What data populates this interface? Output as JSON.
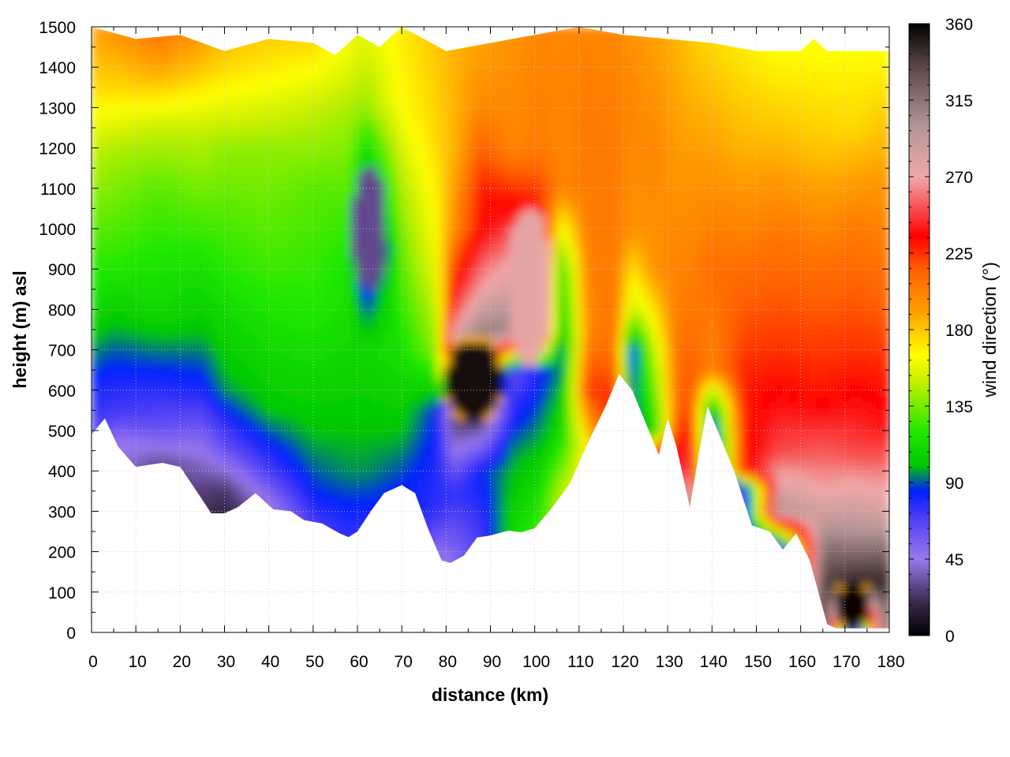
{
  "chart_data": {
    "type": "heatmap",
    "title": "",
    "xlabel": "distance (km)",
    "ylabel": "height (m) asl",
    "xlim": [
      0,
      180
    ],
    "ylim": [
      0,
      1500
    ],
    "x_ticks": [
      "0",
      "10",
      "20",
      "30",
      "40",
      "50",
      "60",
      "70",
      "80",
      "90",
      "100",
      "110",
      "120",
      "130",
      "140",
      "150",
      "160",
      "170",
      "180"
    ],
    "y_ticks": [
      "0",
      "100",
      "200",
      "300",
      "400",
      "500",
      "600",
      "700",
      "800",
      "900",
      "1000",
      "1100",
      "1200",
      "1300",
      "1400",
      "1500"
    ],
    "grid": true,
    "colorbar": {
      "label": "wind direction (°)",
      "range": [
        0,
        360
      ],
      "ticks": [
        "0",
        "45",
        "90",
        "135",
        "180",
        "225",
        "270",
        "315",
        "360"
      ],
      "stops": [
        {
          "value": 0,
          "color": "#000000"
        },
        {
          "value": 20,
          "color": "#3c2a4e"
        },
        {
          "value": 45,
          "color": "#9a78ee"
        },
        {
          "value": 70,
          "color": "#4a3cf5"
        },
        {
          "value": 85,
          "color": "#0020ff"
        },
        {
          "value": 100,
          "color": "#00c800"
        },
        {
          "value": 120,
          "color": "#20e800"
        },
        {
          "value": 150,
          "color": "#c8f000"
        },
        {
          "value": 165,
          "color": "#ffff00"
        },
        {
          "value": 190,
          "color": "#ffa000"
        },
        {
          "value": 215,
          "color": "#ff6000"
        },
        {
          "value": 235,
          "color": "#ff0000"
        },
        {
          "value": 270,
          "color": "#f0a8a8"
        },
        {
          "value": 300,
          "color": "#b49494"
        },
        {
          "value": 335,
          "color": "#5a4646"
        },
        {
          "value": 360,
          "color": "#000000"
        }
      ]
    },
    "terrain_height_m": [
      [
        0,
        490
      ],
      [
        3,
        530
      ],
      [
        6,
        460
      ],
      [
        10,
        410
      ],
      [
        13,
        415
      ],
      [
        16,
        420
      ],
      [
        20,
        410
      ],
      [
        24,
        345
      ],
      [
        27,
        295
      ],
      [
        30,
        295
      ],
      [
        33,
        310
      ],
      [
        37,
        345
      ],
      [
        41,
        305
      ],
      [
        45,
        300
      ],
      [
        48,
        278
      ],
      [
        52,
        270
      ],
      [
        56,
        245
      ],
      [
        58,
        236
      ],
      [
        60,
        250
      ],
      [
        63,
        300
      ],
      [
        66,
        345
      ],
      [
        70,
        365
      ],
      [
        73,
        345
      ],
      [
        76,
        255
      ],
      [
        79,
        178
      ],
      [
        81,
        172
      ],
      [
        84,
        190
      ],
      [
        87,
        235
      ],
      [
        90,
        240
      ],
      [
        94,
        252
      ],
      [
        97,
        248
      ],
      [
        100,
        258
      ],
      [
        104,
        310
      ],
      [
        108,
        370
      ],
      [
        112,
        470
      ],
      [
        116,
        560
      ],
      [
        119,
        640
      ],
      [
        122,
        600
      ],
      [
        125,
        520
      ],
      [
        128,
        440
      ],
      [
        130,
        530
      ],
      [
        132,
        460
      ],
      [
        135,
        310
      ],
      [
        137,
        440
      ],
      [
        139,
        560
      ],
      [
        142,
        480
      ],
      [
        145,
        400
      ],
      [
        149,
        265
      ],
      [
        153,
        250
      ],
      [
        156,
        205
      ],
      [
        159,
        245
      ],
      [
        162,
        180
      ],
      [
        164,
        100
      ],
      [
        166,
        20
      ],
      [
        168,
        10
      ],
      [
        180,
        10
      ]
    ],
    "top_boundary_m": [
      [
        0,
        1500
      ],
      [
        10,
        1470
      ],
      [
        20,
        1480
      ],
      [
        30,
        1440
      ],
      [
        40,
        1470
      ],
      [
        50,
        1460
      ],
      [
        55,
        1430
      ],
      [
        60,
        1480
      ],
      [
        65,
        1450
      ],
      [
        70,
        1500
      ],
      [
        80,
        1440
      ],
      [
        90,
        1460
      ],
      [
        100,
        1480
      ],
      [
        110,
        1500
      ],
      [
        120,
        1480
      ],
      [
        130,
        1470
      ],
      [
        140,
        1460
      ],
      [
        150,
        1440
      ],
      [
        160,
        1440
      ],
      [
        163,
        1470
      ],
      [
        166,
        1440
      ],
      [
        180,
        1440
      ]
    ],
    "direction_field": [
      {
        "x": 0,
        "profile": [
          [
            490,
            70
          ],
          [
            600,
            80
          ],
          [
            800,
            110
          ],
          [
            1200,
            150
          ],
          [
            1350,
            175
          ],
          [
            1500,
            190
          ]
        ]
      },
      {
        "x": 5,
        "profile": [
          [
            470,
            45
          ],
          [
            540,
            70
          ],
          [
            700,
            90
          ],
          [
            900,
            120
          ],
          [
            1200,
            145
          ],
          [
            1350,
            175
          ],
          [
            1500,
            195
          ]
        ]
      },
      {
        "x": 15,
        "profile": [
          [
            420,
            30
          ],
          [
            500,
            60
          ],
          [
            650,
            85
          ],
          [
            800,
            110
          ],
          [
            1100,
            130
          ],
          [
            1250,
            150
          ],
          [
            1380,
            185
          ],
          [
            1480,
            205
          ]
        ]
      },
      {
        "x": 25,
        "profile": [
          [
            345,
            25
          ],
          [
            450,
            45
          ],
          [
            600,
            80
          ],
          [
            750,
            100
          ],
          [
            1000,
            125
          ],
          [
            1250,
            150
          ],
          [
            1400,
            180
          ],
          [
            1500,
            195
          ]
        ]
      },
      {
        "x": 30,
        "profile": [
          [
            295,
            15
          ],
          [
            360,
            25
          ],
          [
            450,
            60
          ],
          [
            600,
            95
          ],
          [
            900,
            120
          ],
          [
            1200,
            140
          ],
          [
            1400,
            175
          ],
          [
            1500,
            185
          ]
        ]
      },
      {
        "x": 40,
        "profile": [
          [
            305,
            40
          ],
          [
            400,
            70
          ],
          [
            550,
            100
          ],
          [
            900,
            125
          ],
          [
            1200,
            140
          ],
          [
            1400,
            170
          ],
          [
            1500,
            180
          ]
        ]
      },
      {
        "x": 50,
        "profile": [
          [
            270,
            70
          ],
          [
            350,
            85
          ],
          [
            500,
            100
          ],
          [
            800,
            120
          ],
          [
            1100,
            130
          ],
          [
            1300,
            150
          ],
          [
            1460,
            175
          ]
        ]
      },
      {
        "x": 58,
        "profile": [
          [
            236,
            75
          ],
          [
            400,
            95
          ],
          [
            700,
            110
          ],
          [
            950,
            120
          ],
          [
            1100,
            130
          ],
          [
            1300,
            145
          ],
          [
            1430,
            160
          ]
        ]
      },
      {
        "x": 62,
        "profile": [
          [
            250,
            75
          ],
          [
            400,
            95
          ],
          [
            700,
            110
          ],
          [
            850,
            80
          ],
          [
            950,
            30
          ],
          [
            1050,
            80
          ],
          [
            1150,
            100
          ],
          [
            1300,
            140
          ],
          [
            1450,
            155
          ]
        ]
      },
      {
        "x": 70,
        "profile": [
          [
            365,
            85
          ],
          [
            500,
            100
          ],
          [
            700,
            115
          ],
          [
            900,
            130
          ],
          [
            1100,
            145
          ],
          [
            1300,
            165
          ],
          [
            1500,
            170
          ]
        ]
      },
      {
        "x": 78,
        "profile": [
          [
            190,
            45
          ],
          [
            300,
            75
          ],
          [
            550,
            85
          ],
          [
            700,
            140
          ],
          [
            900,
            160
          ],
          [
            1200,
            175
          ],
          [
            1440,
            180
          ]
        ]
      },
      {
        "x": 82,
        "profile": [
          [
            172,
            50
          ],
          [
            350,
            75
          ],
          [
            550,
            15
          ],
          [
            650,
            330
          ],
          [
            800,
            250
          ],
          [
            1000,
            200
          ],
          [
            1200,
            185
          ],
          [
            1440,
            185
          ]
        ]
      },
      {
        "x": 88,
        "profile": [
          [
            220,
            70
          ],
          [
            400,
            85
          ],
          [
            550,
            10
          ],
          [
            700,
            330
          ],
          [
            850,
            270
          ],
          [
            1000,
            235
          ],
          [
            1100,
            230
          ],
          [
            1300,
            200
          ],
          [
            1460,
            190
          ]
        ]
      },
      {
        "x": 95,
        "profile": [
          [
            250,
            110
          ],
          [
            450,
            95
          ],
          [
            650,
            60
          ],
          [
            750,
            310
          ],
          [
            900,
            275
          ],
          [
            1000,
            250
          ],
          [
            1200,
            200
          ],
          [
            1480,
            195
          ]
        ]
      },
      {
        "x": 101,
        "profile": [
          [
            258,
            125
          ],
          [
            450,
            100
          ],
          [
            650,
            80
          ],
          [
            750,
            290
          ],
          [
            850,
            280
          ],
          [
            1000,
            240
          ],
          [
            1200,
            205
          ],
          [
            1480,
            200
          ]
        ]
      },
      {
        "x": 106,
        "profile": [
          [
            340,
            150
          ],
          [
            500,
            110
          ],
          [
            700,
            90
          ],
          [
            900,
            120
          ],
          [
            1100,
            200
          ],
          [
            1300,
            200
          ],
          [
            1500,
            200
          ]
        ]
      },
      {
        "x": 112,
        "profile": [
          [
            470,
            170
          ],
          [
            600,
            225
          ],
          [
            750,
            200
          ],
          [
            1000,
            205
          ],
          [
            1300,
            205
          ],
          [
            1500,
            200
          ]
        ]
      },
      {
        "x": 118,
        "profile": [
          [
            560,
            230
          ],
          [
            700,
            210
          ],
          [
            900,
            205
          ],
          [
            1200,
            205
          ],
          [
            1480,
            200
          ]
        ]
      },
      {
        "x": 122,
        "profile": [
          [
            600,
            90
          ],
          [
            700,
            80
          ],
          [
            800,
            150
          ],
          [
            1000,
            195
          ],
          [
            1300,
            200
          ],
          [
            1480,
            195
          ]
        ]
      },
      {
        "x": 127,
        "profile": [
          [
            440,
            250
          ],
          [
            500,
            110
          ],
          [
            650,
            140
          ],
          [
            900,
            195
          ],
          [
            1200,
            200
          ],
          [
            1475,
            190
          ]
        ]
      },
      {
        "x": 132,
        "profile": [
          [
            460,
            230
          ],
          [
            550,
            210
          ],
          [
            800,
            205
          ],
          [
            1100,
            195
          ],
          [
            1470,
            185
          ]
        ]
      },
      {
        "x": 135,
        "profile": [
          [
            310,
            330
          ],
          [
            400,
            260
          ],
          [
            550,
            225
          ],
          [
            800,
            205
          ],
          [
            1100,
            195
          ],
          [
            1465,
            180
          ]
        ]
      },
      {
        "x": 140,
        "profile": [
          [
            480,
            70
          ],
          [
            550,
            95
          ],
          [
            650,
            200
          ],
          [
            900,
            210
          ],
          [
            1200,
            190
          ],
          [
            1460,
            175
          ]
        ]
      },
      {
        "x": 147,
        "profile": [
          [
            360,
            60
          ],
          [
            400,
            230
          ],
          [
            600,
            230
          ],
          [
            900,
            210
          ],
          [
            1200,
            185
          ],
          [
            1450,
            170
          ]
        ]
      },
      {
        "x": 155,
        "profile": [
          [
            210,
            40
          ],
          [
            300,
            300
          ],
          [
            450,
            250
          ],
          [
            700,
            225
          ],
          [
            1000,
            205
          ],
          [
            1250,
            180
          ],
          [
            1440,
            165
          ]
        ]
      },
      {
        "x": 165,
        "profile": [
          [
            60,
            350
          ],
          [
            200,
            320
          ],
          [
            350,
            270
          ],
          [
            600,
            230
          ],
          [
            900,
            210
          ],
          [
            1200,
            180
          ],
          [
            1440,
            165
          ]
        ]
      },
      {
        "x": 172,
        "profile": [
          [
            10,
            5
          ],
          [
            120,
            350
          ],
          [
            250,
            300
          ],
          [
            450,
            250
          ],
          [
            700,
            225
          ],
          [
            1000,
            205
          ],
          [
            1250,
            175
          ],
          [
            1440,
            165
          ]
        ]
      },
      {
        "x": 180,
        "profile": [
          [
            10,
            360
          ],
          [
            150,
            340
          ],
          [
            300,
            280
          ],
          [
            500,
            240
          ],
          [
            800,
            215
          ],
          [
            1100,
            195
          ],
          [
            1440,
            165
          ]
        ]
      }
    ],
    "features": [
      {
        "name": "dark-core-85km",
        "x": [
          79,
          92
        ],
        "y": [
          520,
          720
        ],
        "value": 355,
        "border_value": 185
      },
      {
        "name": "blue-pocket-62km",
        "x": [
          58,
          66
        ],
        "y": [
          840,
          1150
        ],
        "value": 30
      },
      {
        "name": "dark-core-170km",
        "x": [
          167,
          175
        ],
        "y": [
          10,
          115
        ],
        "value": 358,
        "border_value": 185
      },
      {
        "name": "pink-tongue-98km",
        "x": [
          93,
          103
        ],
        "y": [
          650,
          1050
        ],
        "value": 275
      }
    ]
  }
}
